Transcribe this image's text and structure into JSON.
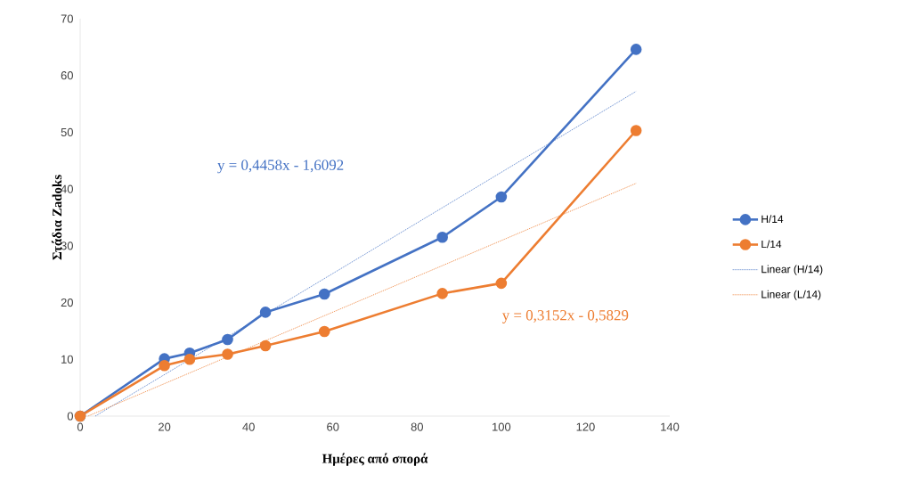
{
  "chart_data": {
    "type": "line",
    "xlabel": "Ημέρες από σπορά",
    "ylabel": "Στάδια Zadoks",
    "series": [
      {
        "name": "H/14",
        "color": "#4472c4",
        "x": [
          0,
          20,
          26,
          35,
          44,
          58,
          86,
          100,
          132
        ],
        "values": [
          0,
          10.1,
          11.1,
          13.5,
          18.3,
          21.5,
          31.5,
          38.6,
          64.6
        ],
        "marker": "circle",
        "line_style": "solid"
      },
      {
        "name": "L/14",
        "color": "#ed7d31",
        "x": [
          0,
          20,
          26,
          35,
          44,
          58,
          86,
          100,
          132
        ],
        "values": [
          0,
          8.9,
          10,
          10.9,
          12.4,
          14.9,
          21.6,
          23.4,
          50.3
        ],
        "marker": "circle",
        "line_style": "solid"
      },
      {
        "name": "Linear (H/14)",
        "color": "#4472c4",
        "x": [
          3.6,
          132
        ],
        "values": [
          0,
          57.2
        ],
        "marker": "none",
        "line_style": "dotted"
      },
      {
        "name": "Linear (L/14)",
        "color": "#ed7d31",
        "x": [
          1.85,
          132
        ],
        "values": [
          0,
          41.0
        ],
        "marker": "none",
        "line_style": "dotted"
      }
    ],
    "annotations": [
      "y = 0,4458x - 1,6092",
      "y = 0,3152x - 0,5829"
    ],
    "xlim": [
      0,
      140
    ],
    "xticks": [
      0,
      20,
      40,
      60,
      80,
      100,
      120,
      140
    ],
    "ylim": [
      0,
      70
    ],
    "yticks": [
      0,
      10,
      20,
      30,
      40,
      50,
      60,
      70
    ],
    "grid": false,
    "legend": "right"
  }
}
